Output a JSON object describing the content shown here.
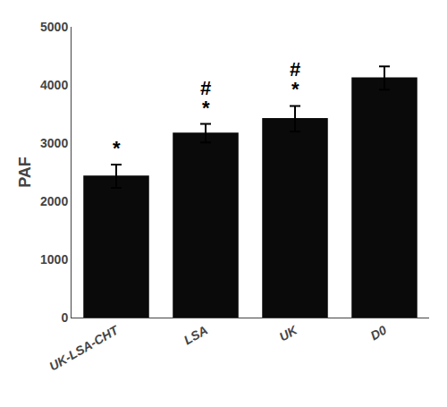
{
  "chart_data": {
    "type": "bar",
    "categories": [
      "UK-LSA-CHT",
      "LSA",
      "UK",
      "D0"
    ],
    "values": [
      2430,
      3170,
      3420,
      4120
    ],
    "errors": [
      200,
      160,
      220,
      200
    ],
    "color": "#0a0a0a",
    "ylabel": "PAF",
    "ylim": [
      0,
      5000
    ],
    "yticks": [
      0,
      1000,
      2000,
      3000,
      4000,
      5000
    ],
    "grid": false,
    "annotations": [
      {
        "x": "UK-LSA-CHT",
        "text": "*"
      },
      {
        "x": "LSA",
        "text": "#"
      },
      {
        "x": "LSA",
        "text": "*"
      },
      {
        "x": "UK",
        "text": "#"
      },
      {
        "x": "UK",
        "text": "*"
      }
    ]
  }
}
